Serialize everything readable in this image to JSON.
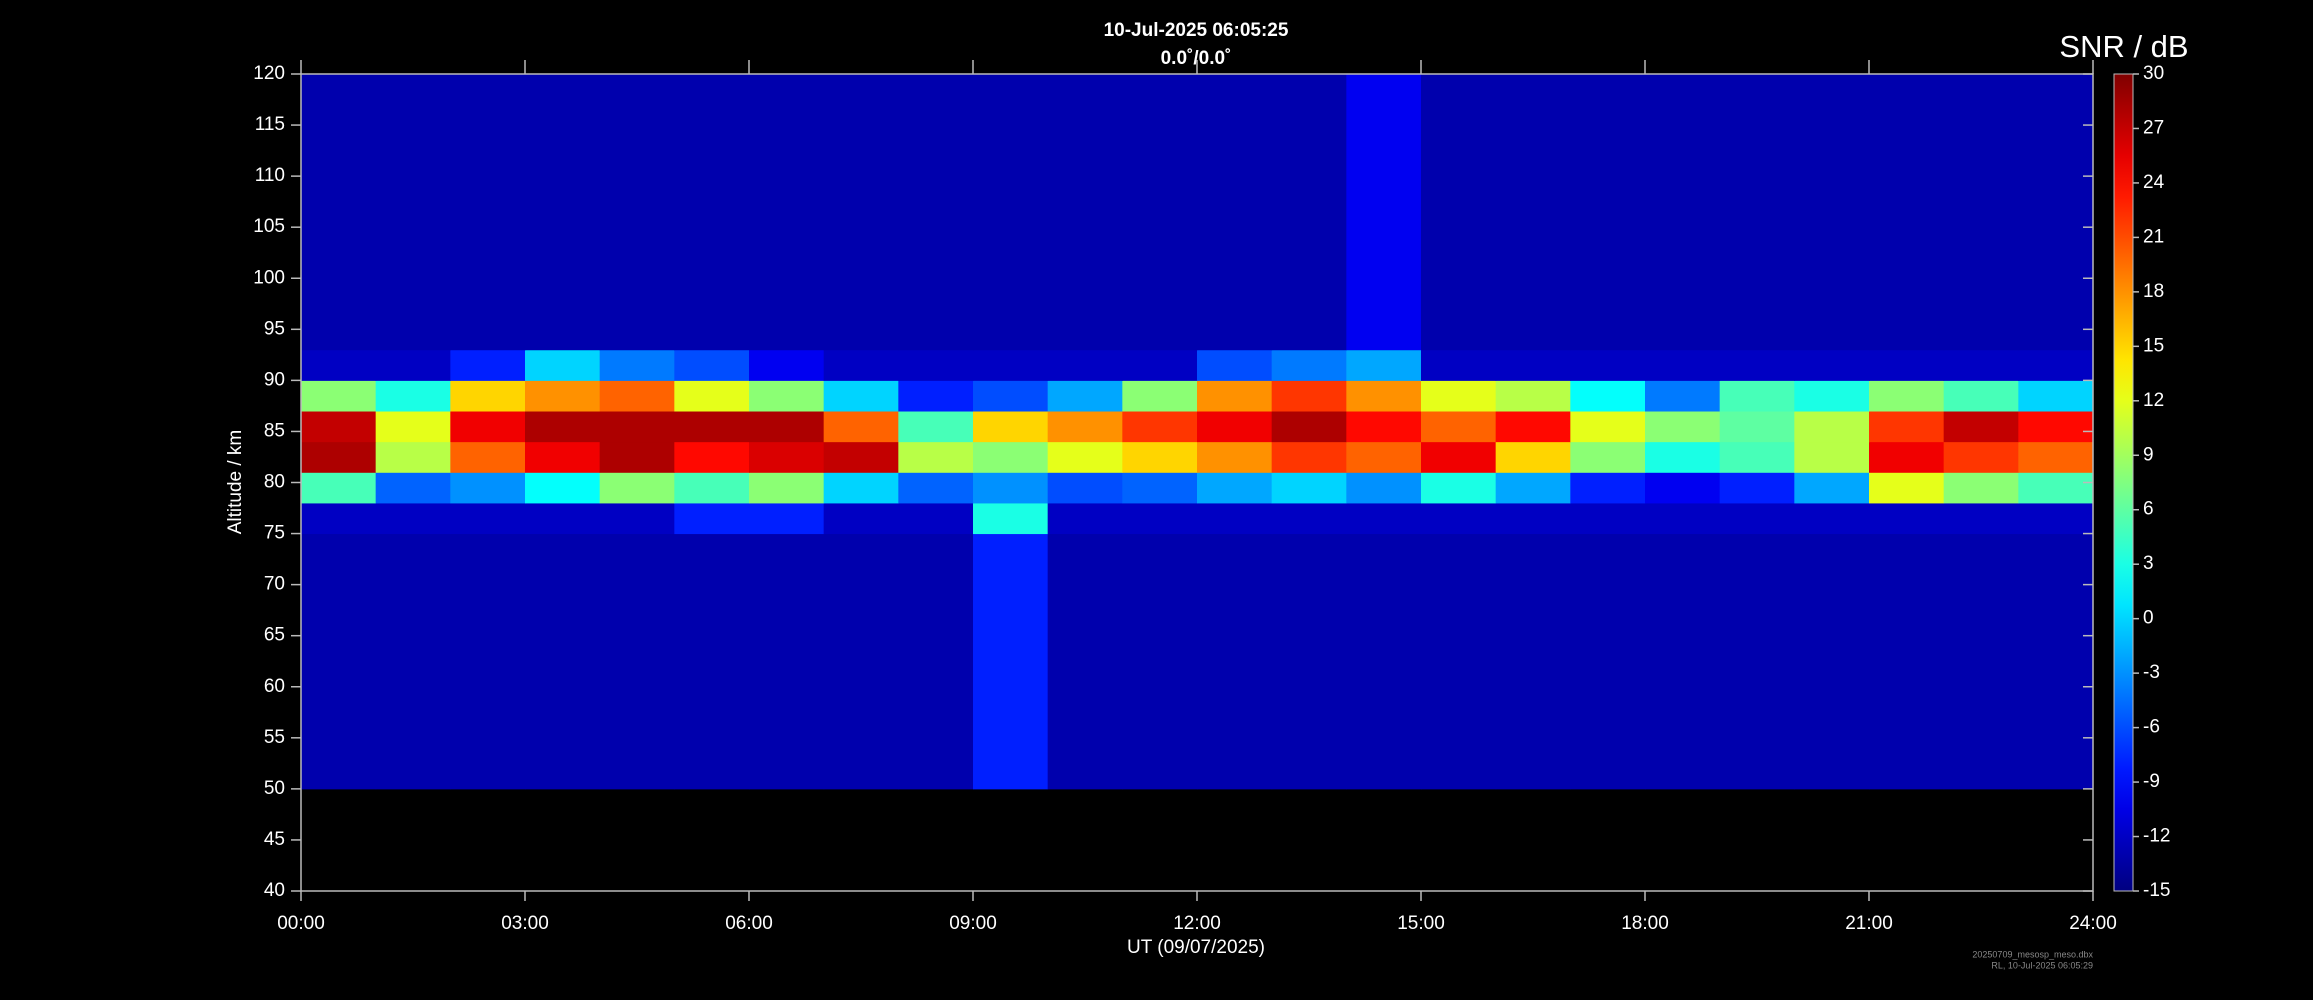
{
  "chart_data": {
    "type": "heatmap",
    "title": "10-Jul-2025 06:05:25",
    "subtitle": "0.0˚/0.0˚",
    "x_label": "UT (09/07/2025)",
    "y_label": "Altitude / km",
    "colorbar_label": "SNR / dB",
    "footnote": [
      "20250709_mesosp_meso.dbx",
      "RL, 10-Jul-2025 06:05:29"
    ],
    "colormap": "jet",
    "x_edges": [
      0,
      1,
      2,
      3,
      4,
      5,
      6,
      7,
      8,
      9,
      10,
      11,
      12,
      13,
      14,
      15,
      16,
      17,
      18,
      19,
      20,
      21,
      22,
      23,
      24
    ],
    "y_edges": [
      50,
      75,
      78,
      81,
      84,
      87,
      90,
      93,
      120
    ],
    "z": [
      [
        -13,
        -13,
        -13,
        -13,
        -13,
        -13,
        -13,
        -13,
        -13,
        -8,
        -13,
        -13,
        -13,
        -13,
        -13,
        -13,
        -13,
        -13,
        -13,
        -13,
        -13,
        -13,
        -13,
        -13
      ],
      [
        -12,
        -12,
        -12,
        -12,
        -12,
        -8,
        -8,
        -12,
        -12,
        3,
        -12,
        -12,
        -12,
        -12,
        -12,
        -12,
        -12,
        -12,
        -12,
        -12,
        -12,
        -12,
        -12,
        -12
      ],
      [
        5,
        -5,
        -3,
        2,
        8,
        5,
        8,
        0,
        -5,
        -3,
        -6,
        -5,
        -2,
        0,
        -3,
        3,
        -2,
        -8,
        -10,
        -8,
        -2,
        12,
        8,
        5
      ],
      [
        28,
        10,
        20,
        25,
        28,
        24,
        26,
        27,
        10,
        8,
        12,
        15,
        18,
        22,
        20,
        25,
        15,
        8,
        3,
        5,
        10,
        25,
        22,
        20
      ],
      [
        27,
        12,
        25,
        28,
        28,
        28,
        28,
        20,
        5,
        15,
        18,
        22,
        25,
        28,
        24,
        20,
        24,
        12,
        8,
        6,
        10,
        22,
        27,
        24
      ],
      [
        8,
        3,
        15,
        18,
        20,
        12,
        8,
        0,
        -8,
        -6,
        -2,
        8,
        18,
        22,
        18,
        12,
        10,
        2,
        -4,
        5,
        3,
        8,
        5,
        0
      ],
      [
        -12,
        -12,
        -8,
        0,
        -4,
        -6,
        -10,
        -12,
        -12,
        -12,
        -12,
        -12,
        -6,
        -4,
        -2,
        -12,
        -12,
        -12,
        -12,
        -12,
        -12,
        -12,
        -12,
        -12
      ],
      [
        -13,
        -13,
        -13,
        -13,
        -13,
        -13,
        -13,
        -13,
        -13,
        -13,
        -13,
        -13,
        -13,
        -13,
        -10,
        -13,
        -13,
        -13,
        -13,
        -13,
        -13,
        -13,
        -13,
        -13
      ]
    ],
    "xlim": [
      0,
      24
    ],
    "xticks": [
      {
        "value": 0,
        "label": "00:00"
      },
      {
        "value": 3,
        "label": "03:00"
      },
      {
        "value": 6,
        "label": "06:00"
      },
      {
        "value": 9,
        "label": "09:00"
      },
      {
        "value": 12,
        "label": "12:00"
      },
      {
        "value": 15,
        "label": "15:00"
      },
      {
        "value": 18,
        "label": "18:00"
      },
      {
        "value": 21,
        "label": "21:00"
      },
      {
        "value": 24,
        "label": "24:00"
      }
    ],
    "ylim": [
      40,
      120
    ],
    "yticks": [
      40,
      45,
      50,
      55,
      60,
      65,
      70,
      75,
      80,
      85,
      90,
      95,
      100,
      105,
      110,
      115,
      120
    ],
    "clim": [
      -15,
      30
    ],
    "cticks": [
      -15,
      -12,
      -9,
      -6,
      -3,
      0,
      3,
      6,
      9,
      12,
      15,
      18,
      21,
      24,
      27,
      30
    ]
  }
}
